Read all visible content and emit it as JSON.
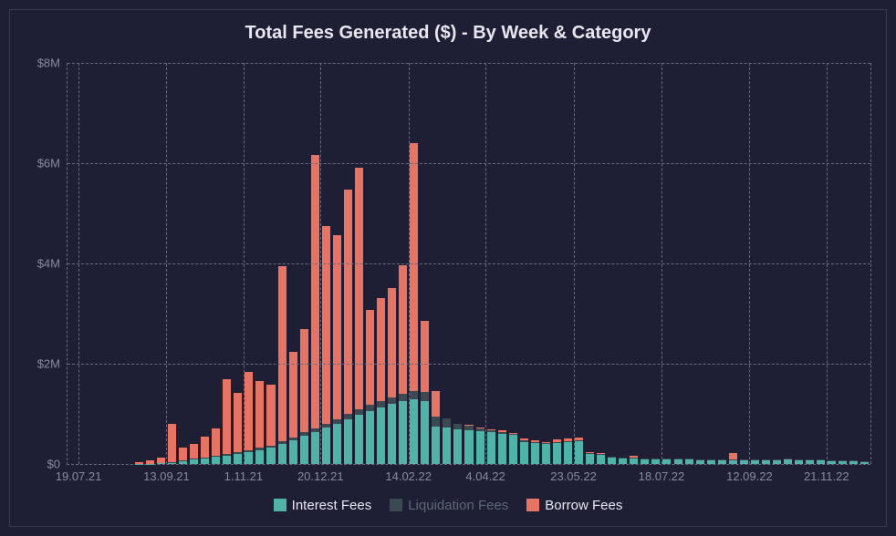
{
  "chart": {
    "type": "stacked-bar",
    "title": "Total Fees Generated ($) - By Week & Category",
    "title_fontsize": 20,
    "title_color": "#e8e8ef",
    "background_color": "#1e1e35",
    "border_color": "#3a3a52",
    "grid_color": "#6a6a80",
    "axis_label_color": "#8a8a9f",
    "axis_label_fontsize": 13,
    "y": {
      "min": 0,
      "max": 8000000,
      "ticks": [
        0,
        2000000,
        4000000,
        6000000,
        8000000
      ],
      "tick_labels": [
        "$0",
        "$2M",
        "$4M",
        "$6M",
        "$8M"
      ]
    },
    "x": {
      "tick_indices": [
        0,
        8,
        15,
        22,
        30,
        37,
        45,
        53,
        61,
        68
      ],
      "tick_labels": [
        "19.07.21",
        "13.09.21",
        "1.11.21",
        "20.12.21",
        "14.02.22",
        "4.04.22",
        "23.05.22",
        "18.07.22",
        "12.09.22",
        "21.11.22"
      ]
    },
    "series": [
      {
        "key": "interest",
        "label": "Interest Fees",
        "color": "#4fb3a9",
        "legend_text_color": "#e8e8ef",
        "enabled": true
      },
      {
        "key": "liquidation",
        "label": "Liquidation Fees",
        "color": "#3a4a50",
        "legend_text_color": "#5a6a72",
        "enabled": false
      },
      {
        "key": "borrow",
        "label": "Borrow Fees",
        "color": "#e97363",
        "legend_text_color": "#e8e8ef",
        "enabled": true
      }
    ],
    "n_bars": 73,
    "bar_gap_ratio": 0.25,
    "data": {
      "interest": [
        0,
        0,
        0,
        0,
        0,
        0,
        5,
        8,
        15,
        40,
        70,
        90,
        110,
        140,
        170,
        200,
        240,
        280,
        320,
        400,
        470,
        560,
        640,
        720,
        800,
        900,
        980,
        1060,
        1120,
        1200,
        1250,
        1300,
        1250,
        750,
        720,
        700,
        680,
        660,
        630,
        600,
        580,
        440,
        420,
        400,
        420,
        440,
        450,
        200,
        190,
        130,
        120,
        120,
        110,
        110,
        100,
        100,
        100,
        90,
        90,
        90,
        80,
        80,
        80,
        80,
        80,
        100,
        80,
        80,
        80,
        60,
        60,
        60,
        50
      ],
      "liquidation": [
        0,
        0,
        0,
        0,
        0,
        0,
        0,
        0,
        0,
        5,
        10,
        15,
        18,
        22,
        26,
        30,
        35,
        40,
        46,
        52,
        60,
        68,
        76,
        84,
        92,
        100,
        110,
        118,
        126,
        134,
        142,
        150,
        180,
        200,
        190,
        100,
        80,
        60,
        50,
        40,
        35,
        30,
        25,
        20,
        18,
        16,
        14,
        12,
        12,
        10,
        10,
        10,
        8,
        8,
        8,
        8,
        6,
        6,
        6,
        6,
        6,
        6,
        6,
        6,
        6,
        6,
        6,
        6,
        6,
        4,
        4,
        4,
        4
      ],
      "borrow": [
        0,
        0,
        0,
        0,
        0,
        0,
        30,
        70,
        120,
        760,
        250,
        300,
        420,
        550,
        1500,
        1190,
        1560,
        1340,
        1210,
        3500,
        1710,
        2070,
        5450,
        3940,
        3680,
        4470,
        4820,
        1900,
        2060,
        2180,
        2580,
        4950,
        1420,
        500,
        0,
        0,
        15,
        15,
        12,
        30,
        12,
        40,
        25,
        15,
        45,
        45,
        55,
        20,
        15,
        0,
        0,
        30,
        0,
        0,
        0,
        0,
        0,
        0,
        0,
        0,
        130,
        0,
        0,
        0,
        0,
        0,
        0,
        0,
        0,
        0,
        0,
        0,
        0
      ]
    }
  }
}
